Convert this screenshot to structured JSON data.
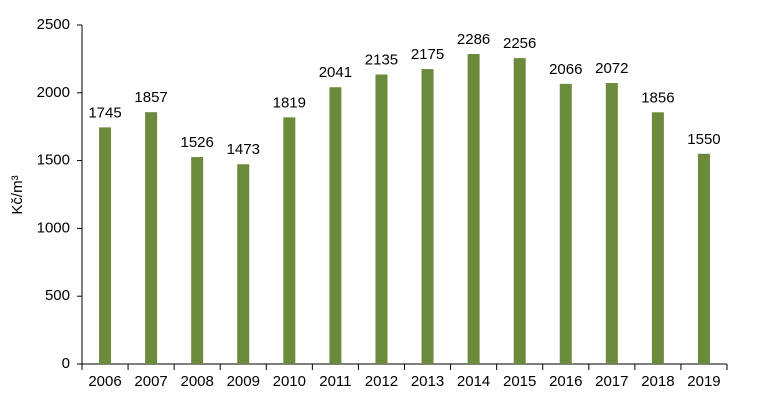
{
  "chart_data": {
    "type": "bar",
    "y_label": "Kč/m³",
    "categories": [
      "2006",
      "2007",
      "2008",
      "2009",
      "2010",
      "2011",
      "2012",
      "2013",
      "2014",
      "2015",
      "2016",
      "2017",
      "2018",
      "2019"
    ],
    "values": [
      1745,
      1857,
      1526,
      1473,
      1819,
      2041,
      2135,
      2175,
      2286,
      2256,
      2066,
      2072,
      1856,
      1550
    ],
    "color": "#6b8a3c",
    "ylim": [
      0,
      2500
    ],
    "yticks": [
      0,
      500,
      1000,
      1500,
      2000,
      2500
    ],
    "grid": false
  }
}
